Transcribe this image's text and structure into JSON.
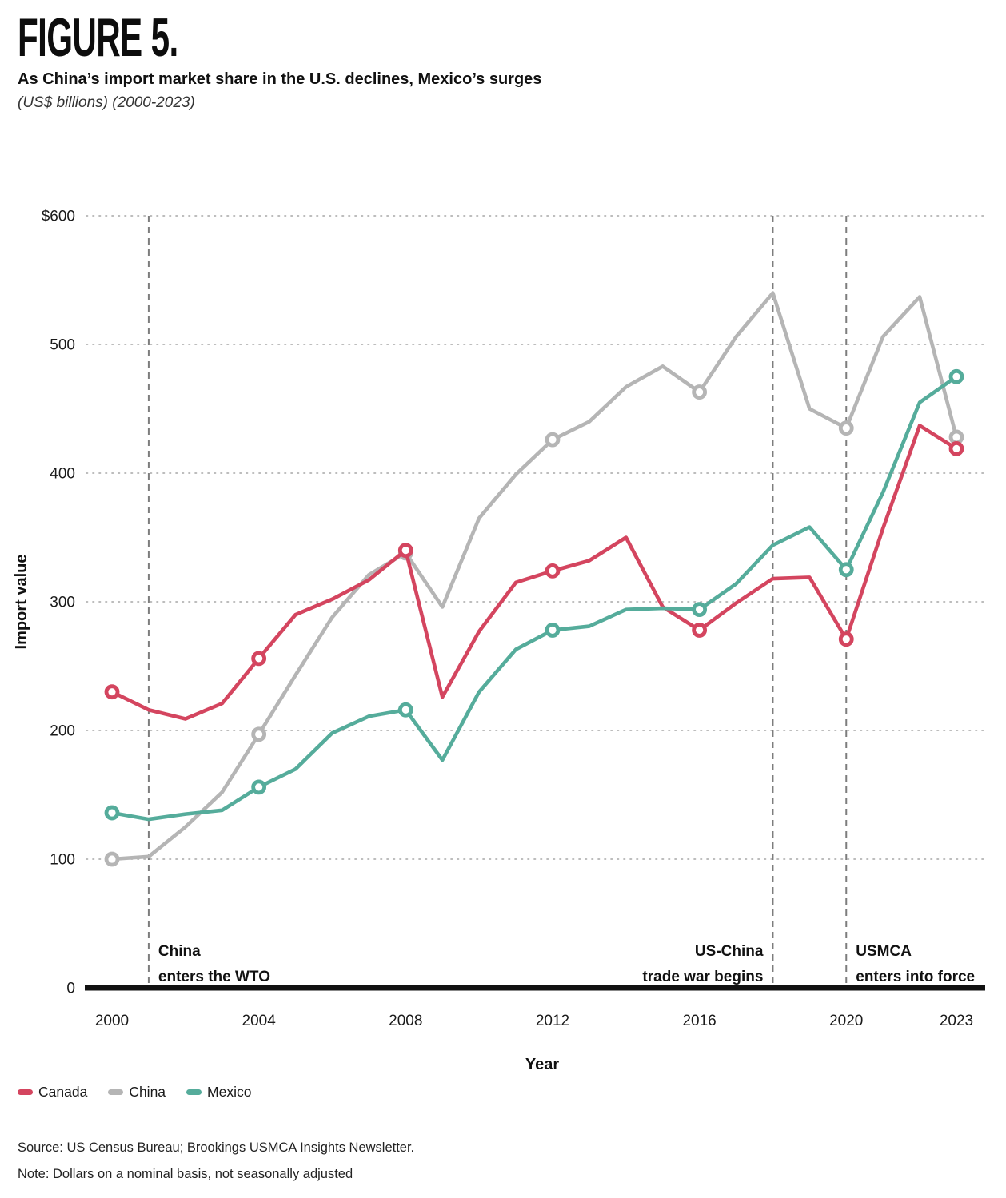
{
  "header": {
    "figure_label": "FIGURE 5.",
    "title": "As China’s import market share in the U.S. declines, Mexico’s surges",
    "units": "(US$ billions) (2000-2023)"
  },
  "chart_data": {
    "type": "line",
    "title": "As China’s import market share in the U.S. declines, Mexico’s surges",
    "xlabel": "Year",
    "ylabel": "Import value",
    "ylim": [
      0,
      600
    ],
    "grid": "dotted horizontal gridlines at each 100",
    "legend_position": "bottom-left",
    "yticks": [
      {
        "value": 0,
        "label": "0"
      },
      {
        "value": 100,
        "label": "100"
      },
      {
        "value": 200,
        "label": "200"
      },
      {
        "value": 300,
        "label": "300"
      },
      {
        "value": 400,
        "label": "400"
      },
      {
        "value": 500,
        "label": "500"
      },
      {
        "value": 600,
        "label": "$600"
      }
    ],
    "xticks": [
      2000,
      2004,
      2008,
      2012,
      2016,
      2020,
      2023
    ],
    "x": [
      2000,
      2001,
      2002,
      2003,
      2004,
      2005,
      2006,
      2007,
      2008,
      2009,
      2010,
      2011,
      2012,
      2013,
      2014,
      2015,
      2016,
      2017,
      2018,
      2019,
      2020,
      2021,
      2022,
      2023
    ],
    "series": [
      {
        "name": "Canada",
        "color": "#d4455f",
        "values": [
          230,
          216,
          209,
          221,
          256,
          290,
          302,
          317,
          340,
          226,
          277,
          315,
          324,
          332,
          350,
          296,
          278,
          299,
          318,
          319,
          271,
          357,
          437,
          419
        ]
      },
      {
        "name": "China",
        "color": "#b5b5b5",
        "values": [
          100,
          102,
          125,
          152,
          197,
          243,
          288,
          321,
          338,
          296,
          365,
          399,
          426,
          440,
          467,
          483,
          463,
          506,
          540,
          450,
          435,
          506,
          537,
          428
        ]
      },
      {
        "name": "Mexico",
        "color": "#55ac9b",
        "values": [
          136,
          131,
          135,
          138,
          156,
          170,
          198,
          211,
          216,
          177,
          230,
          263,
          278,
          281,
          294,
          295,
          294,
          314,
          344,
          358,
          325,
          385,
          455,
          475
        ]
      }
    ],
    "draw_order": [
      "China",
      "Canada",
      "Mexico"
    ],
    "marker_years": [
      2000,
      2004,
      2008,
      2012,
      2016,
      2020,
      2023
    ],
    "events": [
      {
        "year": 2001,
        "lines": [
          "China",
          "enters the WTO"
        ],
        "align": "right"
      },
      {
        "year": 2018,
        "lines": [
          "US-China",
          "trade war begins"
        ],
        "align": "left"
      },
      {
        "year": 2020,
        "lines": [
          "USMCA",
          "enters into force"
        ],
        "align": "right"
      }
    ]
  },
  "footer": {
    "source": "Source: US Census Bureau; Brookings USMCA Insights Newsletter.",
    "note": "Note: Dollars on a nominal basis, not seasonally adjusted"
  }
}
